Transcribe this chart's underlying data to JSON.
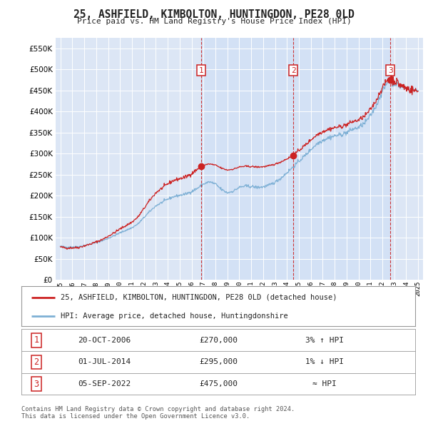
{
  "title": "25, ASHFIELD, KIMBOLTON, HUNTINGDON, PE28 0LD",
  "subtitle": "Price paid vs. HM Land Registry's House Price Index (HPI)",
  "bg_color": "#dce6f5",
  "plot_bg_color": "#dce6f5",
  "legend_label_red": "25, ASHFIELD, KIMBOLTON, HUNTINGDON, PE28 0LD (detached house)",
  "legend_label_blue": "HPI: Average price, detached house, Huntingdonshire",
  "footer": "Contains HM Land Registry data © Crown copyright and database right 2024.\nThis data is licensed under the Open Government Licence v3.0.",
  "sales": [
    {
      "num": 1,
      "date_x": 2006.8,
      "price": 270000,
      "label": "20-OCT-2006",
      "amount": "£270,000",
      "relation": "3% ↑ HPI"
    },
    {
      "num": 2,
      "date_x": 2014.54,
      "price": 295000,
      "label": "01-JUL-2014",
      "amount": "£295,000",
      "relation": "1% ↓ HPI"
    },
    {
      "num": 3,
      "date_x": 2022.67,
      "price": 475000,
      "label": "05-SEP-2022",
      "amount": "£475,000",
      "relation": "≈ HPI"
    }
  ],
  "ylim": [
    0,
    575000
  ],
  "yticks": [
    0,
    50000,
    100000,
    150000,
    200000,
    250000,
    300000,
    350000,
    400000,
    450000,
    500000,
    550000
  ],
  "xlim_start": 1994.6,
  "xlim_end": 2025.4,
  "xticks": [
    1995,
    1996,
    1997,
    1998,
    1999,
    2000,
    2001,
    2002,
    2003,
    2004,
    2005,
    2006,
    2007,
    2008,
    2009,
    2010,
    2011,
    2012,
    2013,
    2014,
    2015,
    2016,
    2017,
    2018,
    2019,
    2020,
    2021,
    2022,
    2023,
    2024,
    2025
  ],
  "hpi_anchors": [
    [
      1995.0,
      80000
    ],
    [
      1995.5,
      78000
    ],
    [
      1996.0,
      78500
    ],
    [
      1996.5,
      79000
    ],
    [
      1997.0,
      82000
    ],
    [
      1997.5,
      85000
    ],
    [
      1998.0,
      89000
    ],
    [
      1998.5,
      93000
    ],
    [
      1999.0,
      99000
    ],
    [
      1999.5,
      105000
    ],
    [
      2000.0,
      112000
    ],
    [
      2000.5,
      118000
    ],
    [
      2001.0,
      124000
    ],
    [
      2001.5,
      133000
    ],
    [
      2002.0,
      148000
    ],
    [
      2002.5,
      163000
    ],
    [
      2003.0,
      176000
    ],
    [
      2003.5,
      184000
    ],
    [
      2004.0,
      192000
    ],
    [
      2004.5,
      198000
    ],
    [
      2005.0,
      201000
    ],
    [
      2005.5,
      204000
    ],
    [
      2006.0,
      210000
    ],
    [
      2006.5,
      218000
    ],
    [
      2007.0,
      228000
    ],
    [
      2007.5,
      233000
    ],
    [
      2008.0,
      228000
    ],
    [
      2008.5,
      215000
    ],
    [
      2009.0,
      207000
    ],
    [
      2009.5,
      211000
    ],
    [
      2010.0,
      220000
    ],
    [
      2010.5,
      223000
    ],
    [
      2011.0,
      222000
    ],
    [
      2011.5,
      220000
    ],
    [
      2012.0,
      221000
    ],
    [
      2012.5,
      225000
    ],
    [
      2013.0,
      232000
    ],
    [
      2013.5,
      242000
    ],
    [
      2014.0,
      255000
    ],
    [
      2014.5,
      268000
    ],
    [
      2015.0,
      282000
    ],
    [
      2015.5,
      295000
    ],
    [
      2016.0,
      310000
    ],
    [
      2016.5,
      323000
    ],
    [
      2017.0,
      332000
    ],
    [
      2017.5,
      338000
    ],
    [
      2018.0,
      342000
    ],
    [
      2018.5,
      345000
    ],
    [
      2019.0,
      350000
    ],
    [
      2019.5,
      358000
    ],
    [
      2020.0,
      362000
    ],
    [
      2020.5,
      372000
    ],
    [
      2021.0,
      390000
    ],
    [
      2021.5,
      415000
    ],
    [
      2022.0,
      448000
    ],
    [
      2022.5,
      472000
    ],
    [
      2023.0,
      468000
    ],
    [
      2023.5,
      460000
    ],
    [
      2024.0,
      455000
    ],
    [
      2024.5,
      452000
    ],
    [
      2025.0,
      450000
    ]
  ]
}
